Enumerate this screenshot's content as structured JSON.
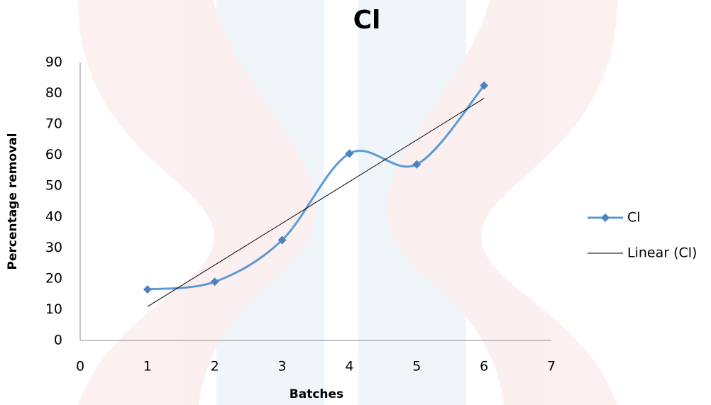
{
  "chart_data": {
    "type": "line",
    "title": "Cl",
    "x_label": "Batches",
    "y_label": "Percentage removal",
    "x": [
      1,
      2,
      3,
      4,
      5,
      6
    ],
    "series": [
      {
        "name": "Cl",
        "color": "#4f81bd",
        "line_color": "#5b9bd5",
        "marker": "diamond",
        "smooth": true,
        "values": [
          16.5,
          19,
          32.5,
          60.5,
          57,
          82.5
        ]
      }
    ],
    "trendline": {
      "name": "Linear (Cl)",
      "type": "linear",
      "color": "#000000"
    },
    "xlim": [
      0,
      7
    ],
    "xticks": [
      0,
      1,
      2,
      3,
      4,
      5,
      6,
      7
    ],
    "ylim": [
      0,
      90
    ],
    "yticks": [
      0,
      10,
      20,
      30,
      40,
      50,
      60,
      70,
      80,
      90
    ],
    "grid": false,
    "legend": "right"
  }
}
